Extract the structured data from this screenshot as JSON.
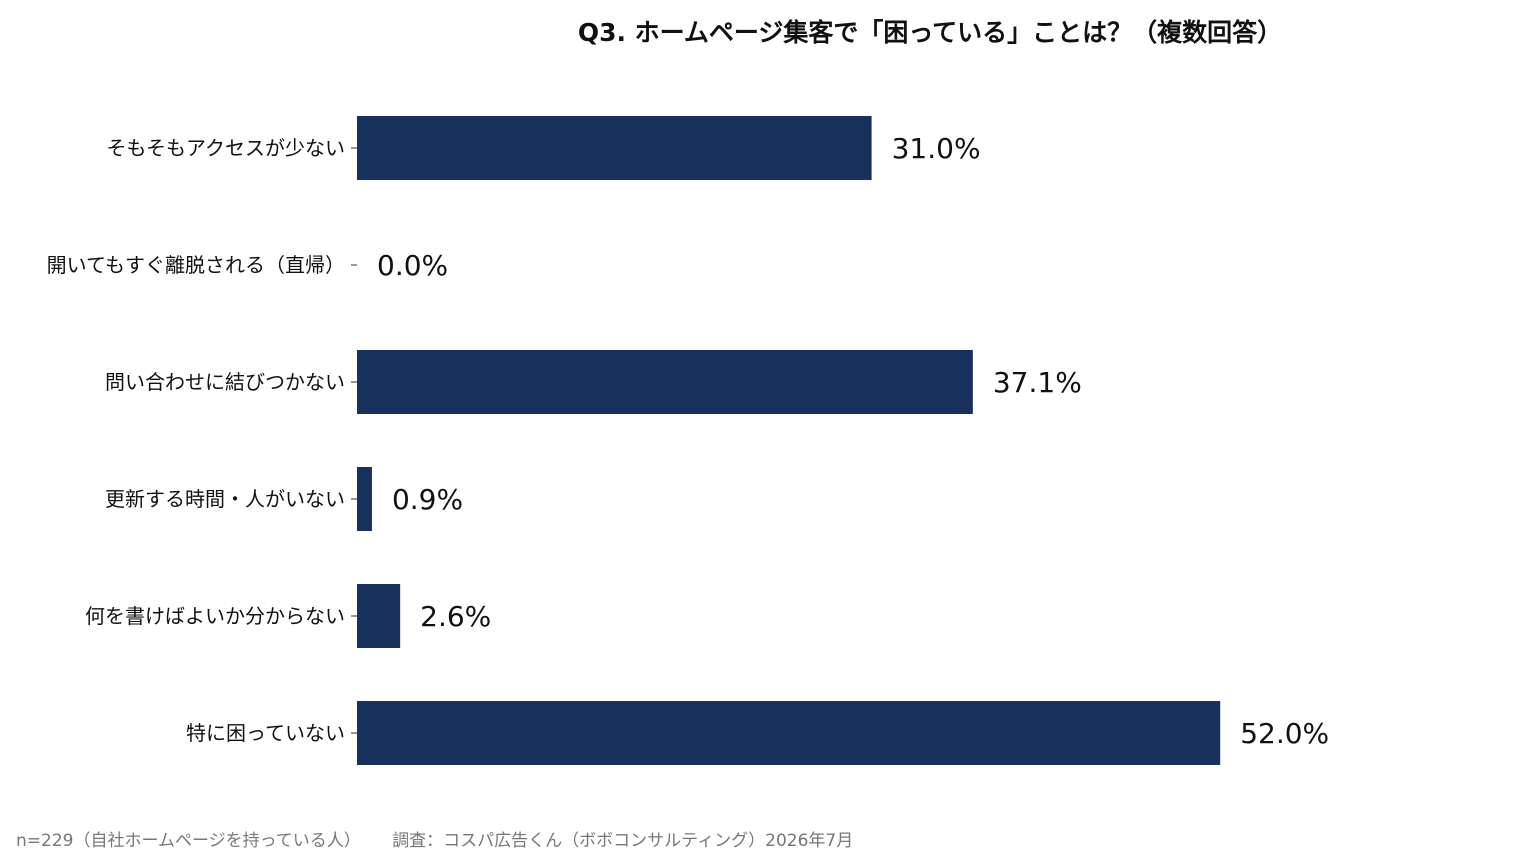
{
  "chart_data": {
    "type": "bar",
    "orientation": "horizontal",
    "title": "Q3. ホームページ集客で「困っている」ことは？（複数回答）",
    "categories": [
      "そもそもアクセスが少ない",
      "開いてもすぐ離脱される（直帰）",
      "問い合わせに結びつかない",
      "更新する時間・人がいない",
      "何を書けばよいか分からない",
      "特に困っていない"
    ],
    "values": [
      31.0,
      0.0,
      37.1,
      0.9,
      2.6,
      52.0
    ],
    "value_labels": [
      "31.0%",
      "0.0%",
      "37.1%",
      "0.9%",
      "2.6%",
      "52.0%"
    ],
    "unit": "%",
    "xlim": [
      0,
      70
    ],
    "grid": false,
    "legend": "none",
    "bar_color": "#17305c"
  },
  "footer": {
    "sample": "n=229（自社ホームページを持っている人）",
    "source": "調査：コスパ広告くん（ボボコンサルティング）2026年7月"
  }
}
